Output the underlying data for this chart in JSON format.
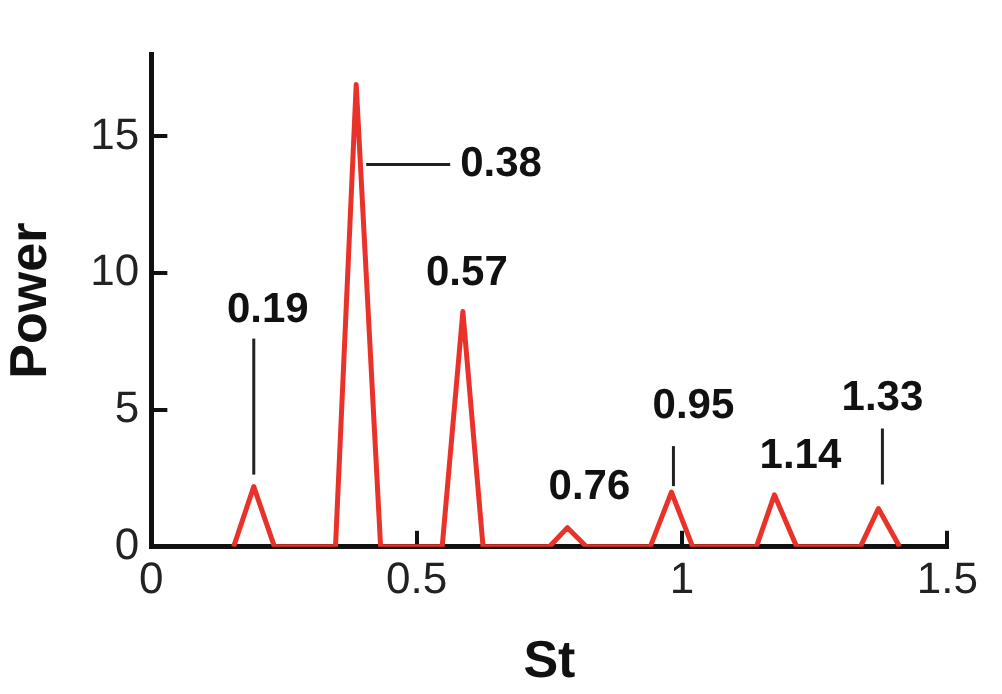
{
  "chart_data": {
    "type": "line",
    "xlabel": "St",
    "ylabel": "Power",
    "series": [
      {
        "color": "#e8322a",
        "x": [
          0.155,
          0.193,
          0.232,
          0.347,
          0.386,
          0.432,
          0.548,
          0.587,
          0.625,
          0.75,
          0.784,
          0.82,
          0.94,
          0.98,
          1.02,
          1.14,
          1.174,
          1.216,
          1.336,
          1.37,
          1.41
        ],
        "values": [
          0,
          2.2,
          0,
          0,
          16.9,
          0,
          0,
          8.6,
          0,
          0,
          0.7,
          0,
          0,
          2.0,
          0,
          0,
          1.9,
          0,
          0,
          1.4,
          0
        ]
      }
    ],
    "annotations": [
      {
        "text": "0.19",
        "x": 0.193,
        "y": 2.2
      },
      {
        "text": "0.38",
        "x": 0.386,
        "y": 16.9
      },
      {
        "text": "0.57",
        "x": 0.587,
        "y": 8.6
      },
      {
        "text": "0.76",
        "x": 0.784,
        "y": 0.7
      },
      {
        "text": "0.95",
        "x": 0.98,
        "y": 2.0
      },
      {
        "text": "1.14",
        "x": 1.174,
        "y": 1.9
      },
      {
        "text": "1.33",
        "x": 1.37,
        "y": 1.4
      }
    ],
    "xlim": [
      0,
      1.5
    ],
    "xticks": [
      0,
      0.5,
      1,
      1.5
    ],
    "ylim": [
      0,
      18
    ],
    "yticks": [
      0,
      5,
      10,
      15
    ],
    "grid": false,
    "legend": false,
    "marker": "none",
    "line_style": "solid"
  }
}
